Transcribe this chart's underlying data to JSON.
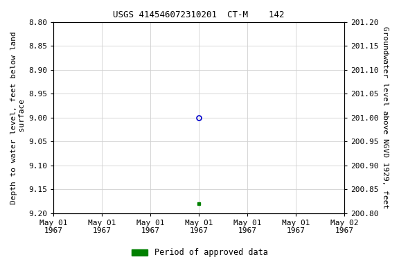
{
  "title": "USGS 414546072310201  CT-M    142",
  "ylabel_left": "Depth to water level, feet below land\n surface",
  "ylabel_right": "Groundwater level above NGVD 1929, feet",
  "ylim_left": [
    8.8,
    9.2
  ],
  "ylim_right": [
    200.8,
    201.2
  ],
  "xlim_days": [
    -3,
    3
  ],
  "xtick_positions": [
    -3,
    -2,
    -1,
    0,
    1,
    2,
    3
  ],
  "xtick_labels": [
    "May 01\n1967",
    "May 01\n1967",
    "May 01\n1967",
    "May 01\n1967",
    "May 01\n1967",
    "May 01\n1967",
    "May 02\n1967"
  ],
  "yticks_left": [
    8.8,
    8.85,
    8.9,
    8.95,
    9.0,
    9.05,
    9.1,
    9.15,
    9.2
  ],
  "ytick_labels_left": [
    "8.80",
    "8.85",
    "8.90",
    "8.95",
    "9.00",
    "9.05",
    "9.10",
    "9.15",
    "9.20"
  ],
  "yticks_right": [
    200.8,
    200.85,
    200.9,
    200.95,
    201.0,
    201.05,
    201.1,
    201.15,
    201.2
  ],
  "ytick_labels_right": [
    "200.80",
    "200.85",
    "200.90",
    "200.95",
    "201.00",
    "201.05",
    "201.10",
    "201.15",
    "201.20"
  ],
  "blue_point_x": 0,
  "blue_point_y": 9.0,
  "green_point_x": 0,
  "green_point_y": 9.18,
  "blue_color": "#0000cc",
  "green_color": "#008000",
  "background_color": "#ffffff",
  "grid_color": "#d0d0d0",
  "legend_label": "Period of approved data",
  "title_fontsize": 9,
  "axis_label_fontsize": 8,
  "tick_fontsize": 8,
  "legend_fontsize": 8.5
}
